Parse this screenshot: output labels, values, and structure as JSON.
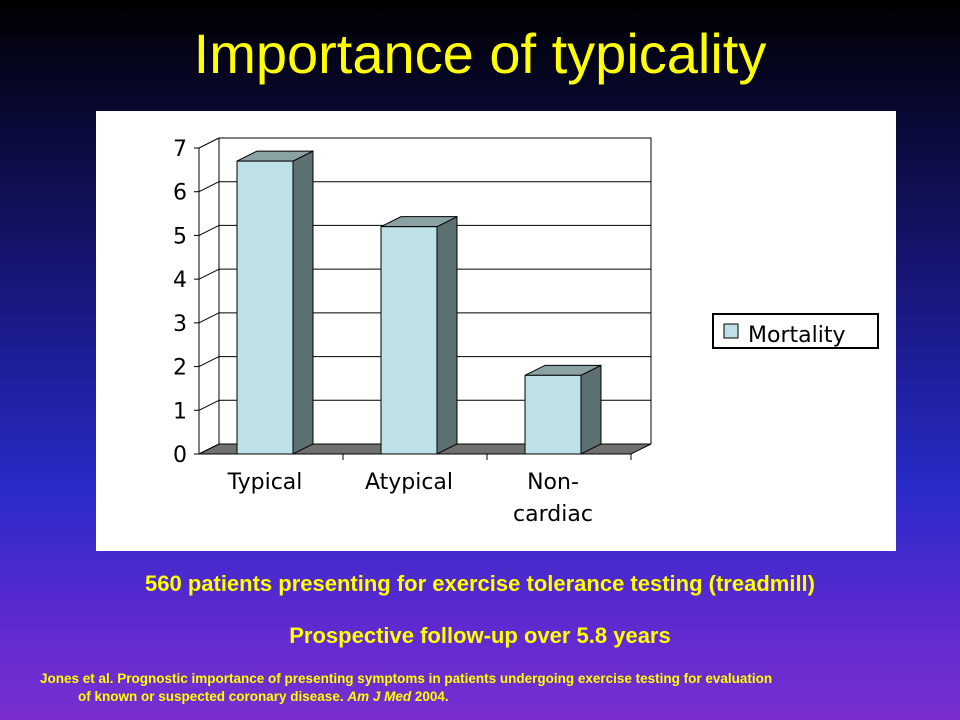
{
  "slide": {
    "title": "Importance of typicality",
    "subtitle_1": "560 patients presenting for exercise tolerance testing (treadmill)",
    "subtitle_2": "Prospective follow-up over 5.8 years",
    "citation": {
      "line1": "Jones et al. Prognostic importance of presenting symptoms in patients undergoing exercise testing for evaluation",
      "line2_a": "of known or suspected coronary disease. ",
      "line2_journal": "Am J Med",
      "line2_b": " 2004."
    }
  },
  "chart_data": {
    "type": "bar",
    "categories": [
      "Typical",
      "Atypical",
      "Non-cardiac"
    ],
    "category_lines": [
      [
        "Typical"
      ],
      [
        "Atypical"
      ],
      [
        "Non-",
        "cardiac"
      ]
    ],
    "series": [
      {
        "name": "Mortality",
        "values": [
          6.7,
          5.2,
          1.8
        ]
      }
    ],
    "ylim": [
      0,
      7
    ],
    "yticks": [
      "0",
      "1",
      "2",
      "3",
      "4",
      "5",
      "6",
      "7"
    ],
    "title": "",
    "xlabel": "",
    "ylabel": "",
    "grid": true,
    "legend_position": "right",
    "colors": {
      "bar_front": "#bde1e6",
      "bar_side": "#5f7070",
      "bar_top": "#8aa2a4",
      "floor": "#707070",
      "grid": "#000000"
    }
  }
}
